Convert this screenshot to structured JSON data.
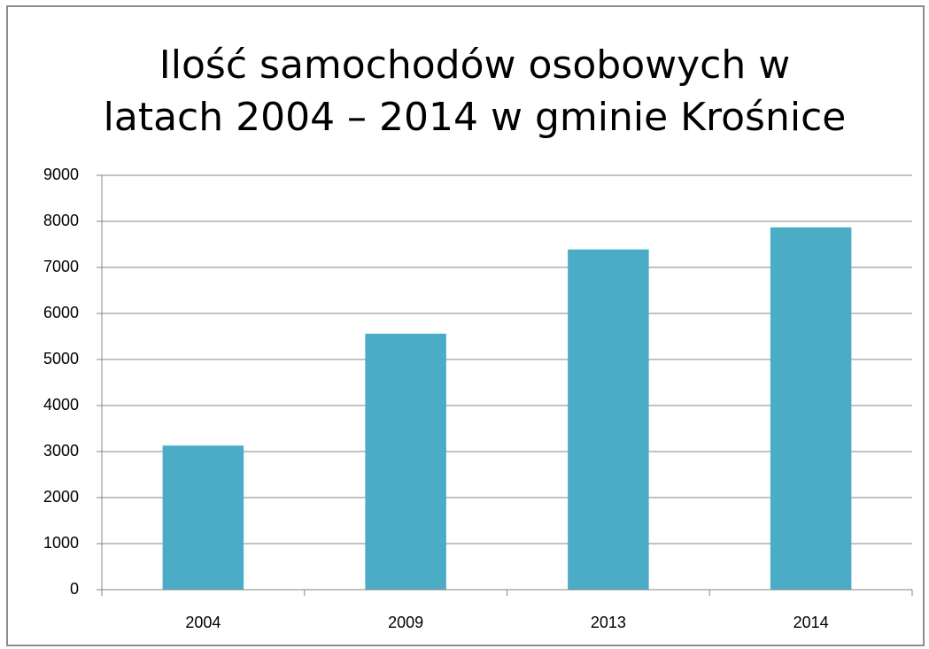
{
  "chart_data": {
    "type": "bar",
    "title": [
      "Ilość samochodów osobowych w",
      "latach 2004 – 2014 w gminie Krośnice"
    ],
    "categories": [
      "2004",
      "2009",
      "2013",
      "2014"
    ],
    "values": [
      3130,
      5560,
      7390,
      7870
    ],
    "color": "#4bacc6",
    "ylim": [
      0,
      9000
    ],
    "yticks": [
      0,
      1000,
      2000,
      3000,
      4000,
      5000,
      6000,
      7000,
      8000,
      9000
    ],
    "grid": true
  }
}
